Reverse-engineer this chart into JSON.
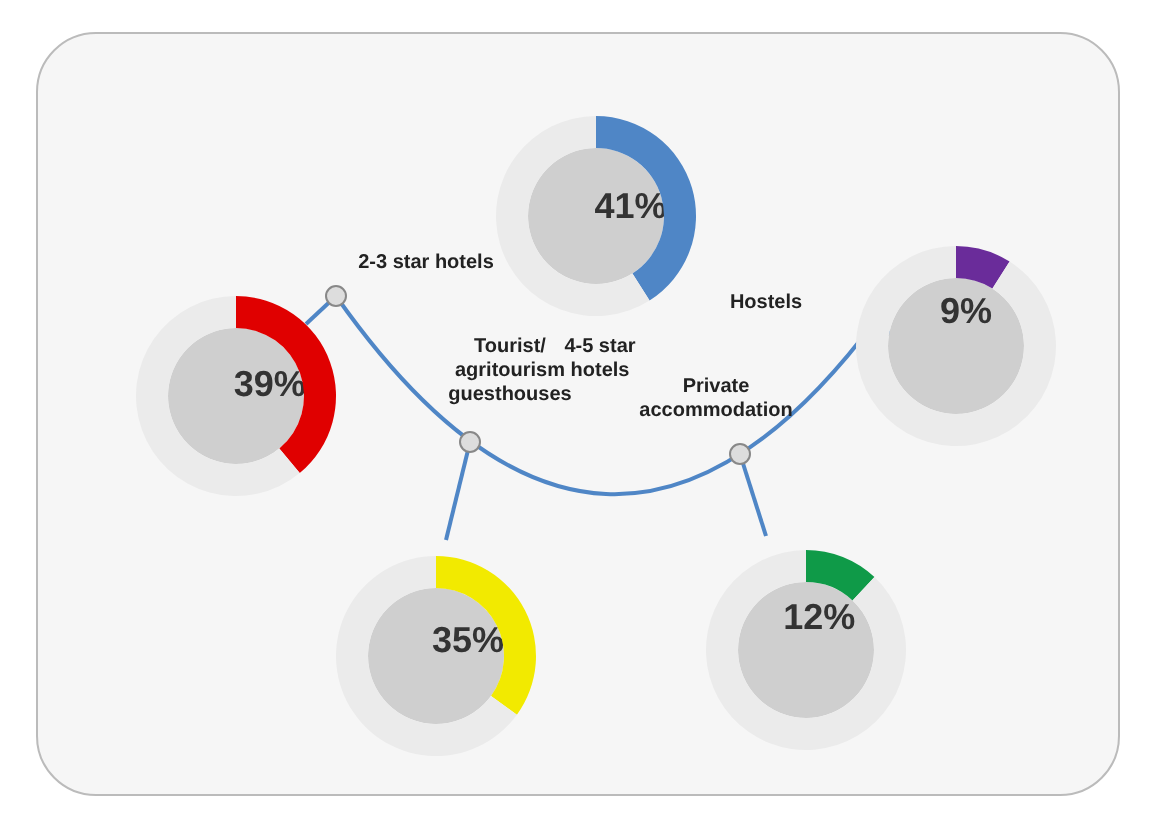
{
  "chart_data": [
    {
      "type": "donut",
      "title": "2-3 star hotels",
      "categories": [
        null,
        null
      ],
      "values": [
        39,
        61
      ],
      "colors": [
        "#e00000",
        "#ebebeb"
      ],
      "value_labels": [
        "39%",
        null
      ]
    },
    {
      "type": "donut",
      "title": "4-5 star hotels",
      "categories": [
        null,
        null
      ],
      "values": [
        41,
        59
      ],
      "colors": [
        "#4f86c6",
        "#ebebeb"
      ],
      "value_labels": [
        "41%",
        null
      ]
    },
    {
      "type": "donut",
      "title": "Hostels",
      "categories": [
        null,
        null
      ],
      "values": [
        9,
        91
      ],
      "colors": [
        "#6a2c9a",
        "#ebebeb"
      ],
      "value_labels": [
        "9%",
        null
      ]
    },
    {
      "type": "donut",
      "title": "Tourist/ agritourism guesthouses",
      "categories": [
        null,
        null
      ],
      "values": [
        35,
        65
      ],
      "colors": [
        "#f2ea00",
        "#ebebeb"
      ],
      "value_labels": [
        "35%",
        null
      ]
    },
    {
      "type": "donut",
      "title": "Private accommodation",
      "categories": [
        null,
        null
      ],
      "values": [
        12,
        88
      ],
      "colors": [
        "#0f9a48",
        "#ebebeb"
      ],
      "value_labels": [
        "12%",
        null
      ]
    }
  ]
}
